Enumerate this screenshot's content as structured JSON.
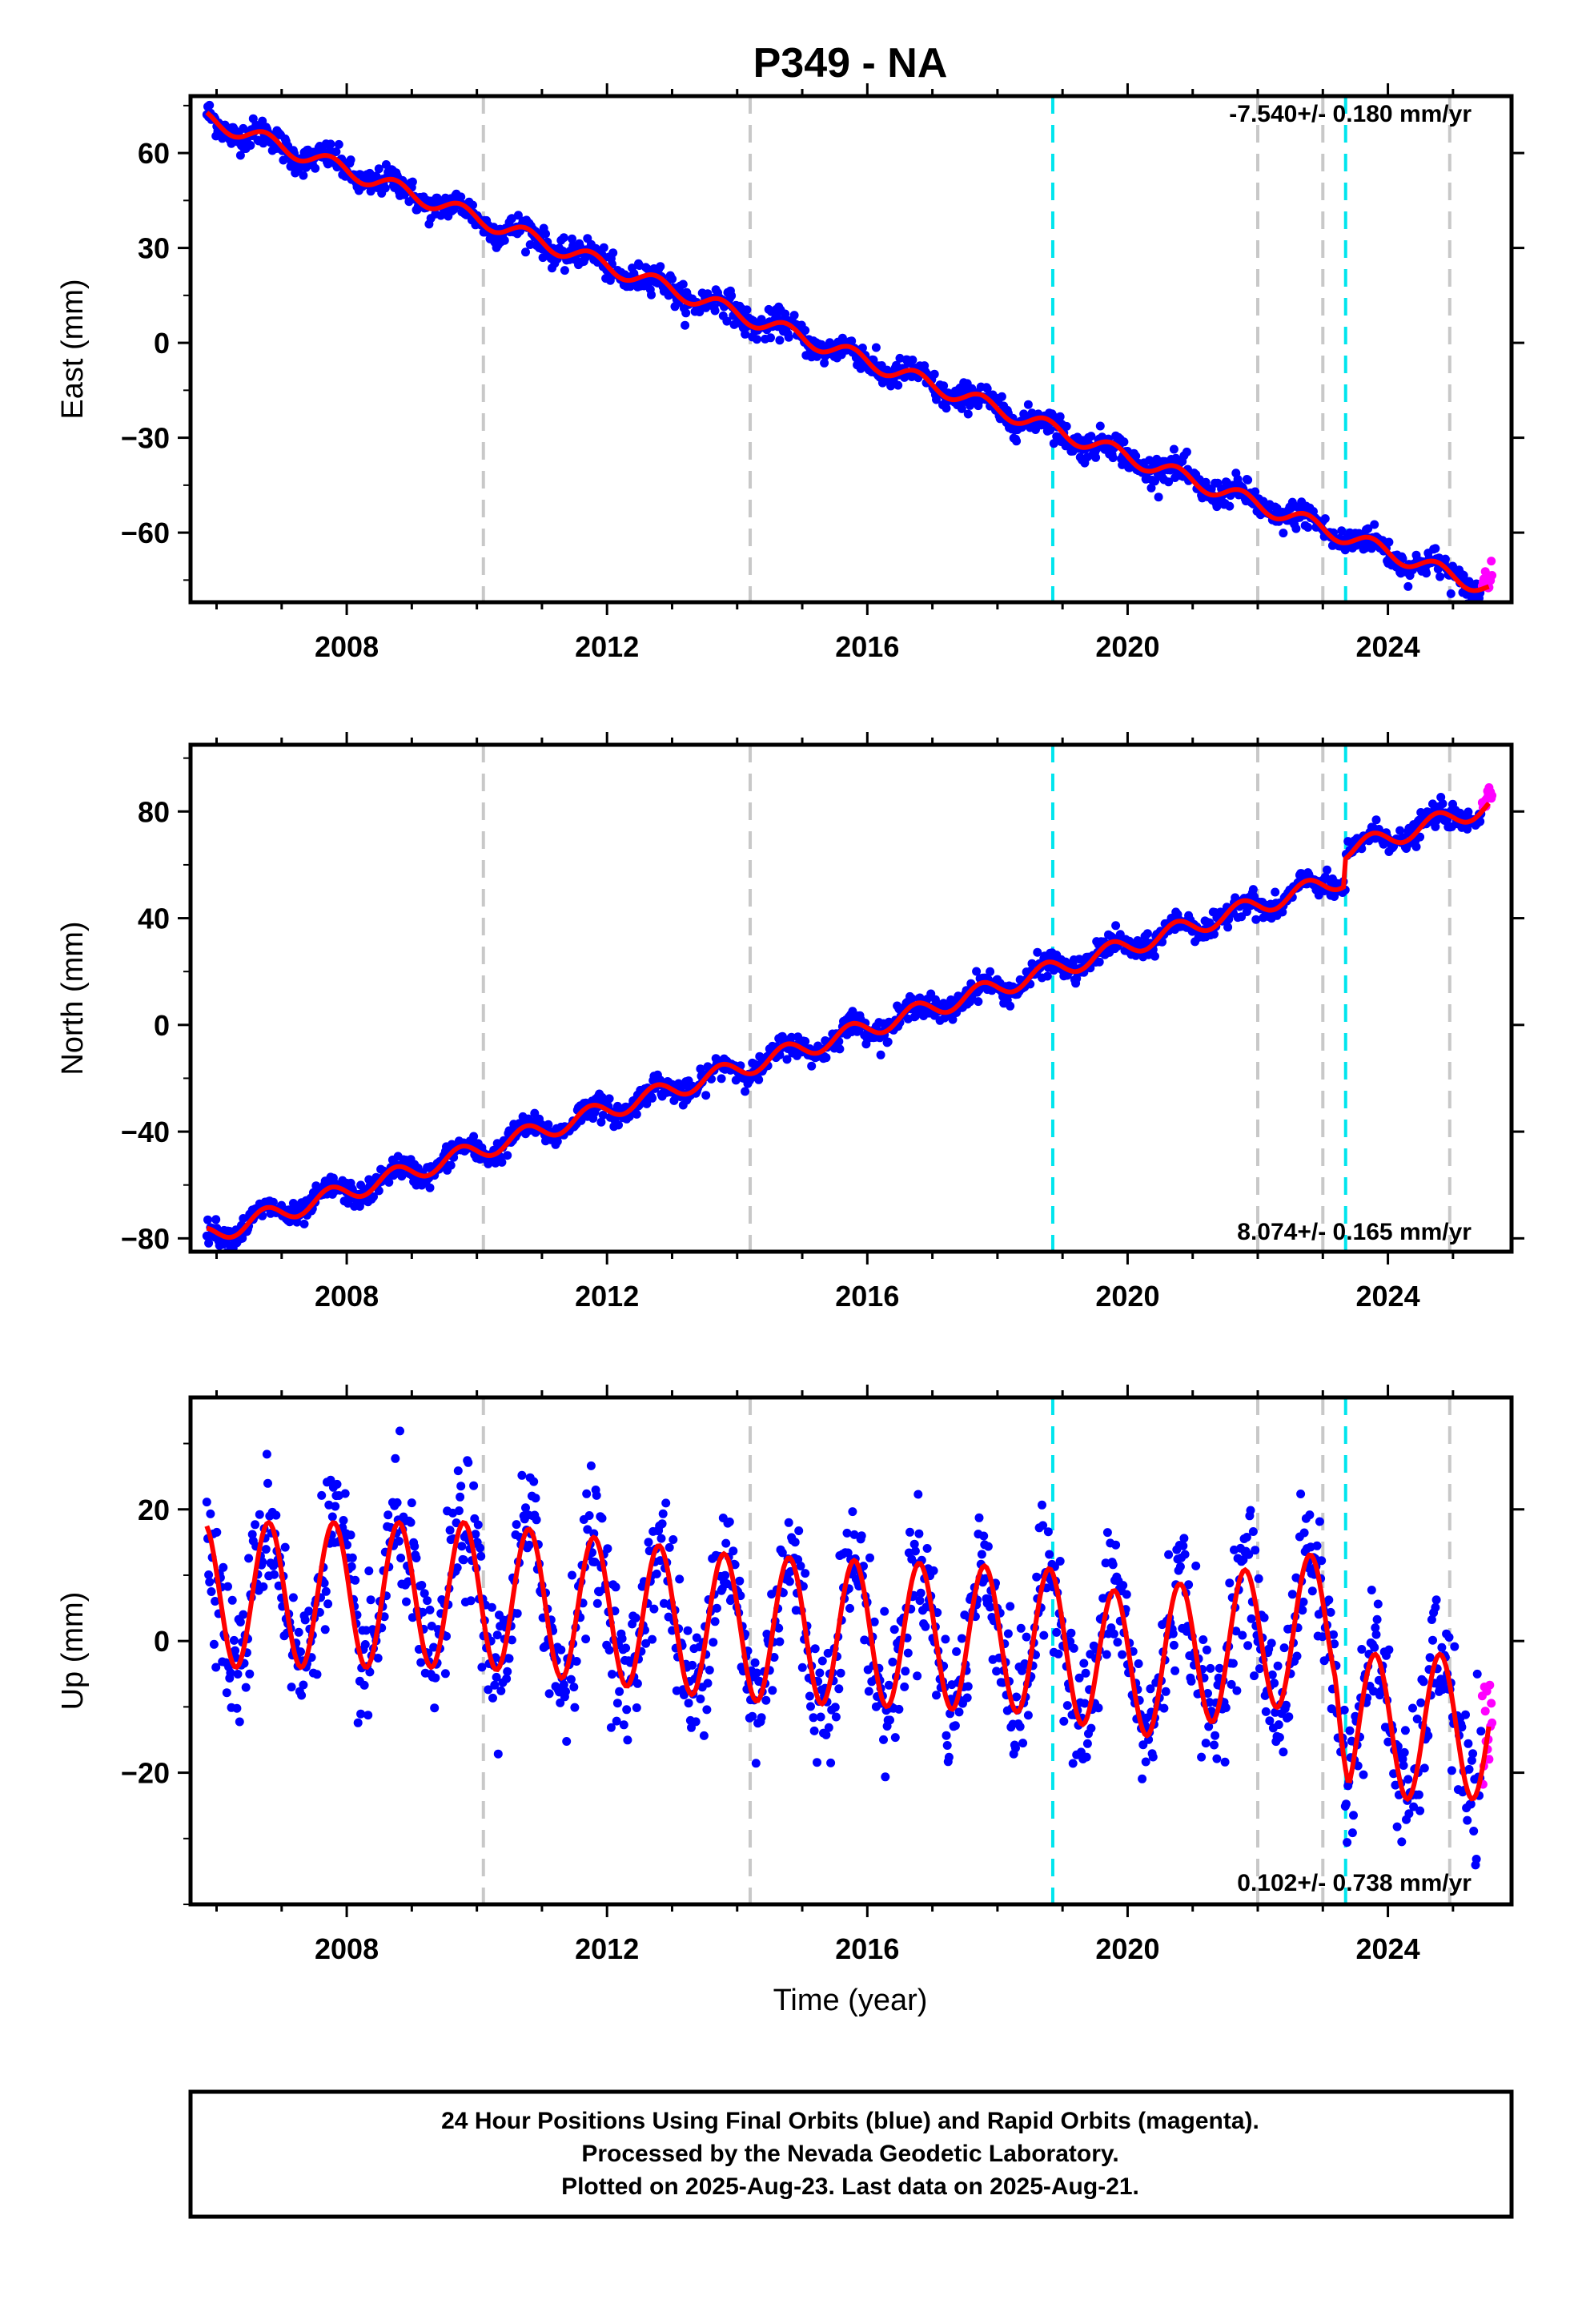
{
  "title": "P349 - NA",
  "xlabel": "Time (year)",
  "colors": {
    "final_orbits": "#0000ff",
    "rapid_orbits": "#ff00ff",
    "model": "#ff0000",
    "equipment_change": "#c8c8c8",
    "earthquake": "#00e5ee"
  },
  "chart_data": [
    {
      "type": "scatter",
      "ylabel": "East (mm)",
      "xlim": [
        2005.6,
        2025.9
      ],
      "ylim": [
        -82,
        78
      ],
      "yticks": [
        -60,
        -30,
        0,
        30,
        60
      ],
      "xticks": [
        2008,
        2012,
        2016,
        2020,
        2024
      ],
      "rate_label": "-7.540+/- 0.180 mm/yr",
      "trend": {
        "start": 2005.85,
        "end": 2025.55,
        "y_start": 70.8,
        "y_end": -77.8,
        "annual_amp": 2.5,
        "scatter": 2.2
      }
    },
    {
      "type": "scatter",
      "ylabel": "North (mm)",
      "xlim": [
        2005.6,
        2025.9
      ],
      "ylim": [
        -85,
        105
      ],
      "yticks": [
        -80,
        -40,
        0,
        40,
        80
      ],
      "xticks": [
        2008,
        2012,
        2016,
        2020,
        2024
      ],
      "rate_label": "8.074+/- 0.165 mm/yr",
      "trend": {
        "start": 2005.85,
        "end": 2025.55,
        "y_start": -79,
        "y_end": 82,
        "annual_amp": 3.5,
        "scatter": 2.2,
        "offset_at": 2023.35,
        "offset": 10
      }
    },
    {
      "type": "scatter",
      "ylabel": "Up (mm)",
      "xlim": [
        2005.6,
        2025.9
      ],
      "ylim": [
        -40,
        37
      ],
      "yticks": [
        -20,
        0,
        20
      ],
      "xticks": [
        2008,
        2012,
        2016,
        2020,
        2024
      ],
      "rate_label": "0.102+/- 0.738 mm/yr",
      "trend": {
        "start": 2005.85,
        "end": 2025.55,
        "annual_amp": 11,
        "scatter": 5,
        "means": [
          [
            2005.85,
            7
          ],
          [
            2010,
            7
          ],
          [
            2014,
            2
          ],
          [
            2018.8,
            0
          ],
          [
            2020,
            -4
          ],
          [
            2021.9,
            0
          ],
          [
            2023.2,
            3
          ],
          [
            2023.4,
            -13
          ],
          [
            2025.5,
            -13
          ]
        ]
      }
    }
  ],
  "equipment_changes": [
    2010.1,
    2014.2,
    2022.0,
    2023.0,
    2024.95
  ],
  "earthquakes": [
    2018.85,
    2023.35
  ],
  "footer": {
    "line1": "24 Hour Positions Using Final Orbits (blue) and Rapid Orbits (magenta).",
    "line2": "Processed by the Nevada Geodetic Laboratory.",
    "line3": "Plotted on 2025-Aug-23. Last data on 2025-Aug-21."
  }
}
